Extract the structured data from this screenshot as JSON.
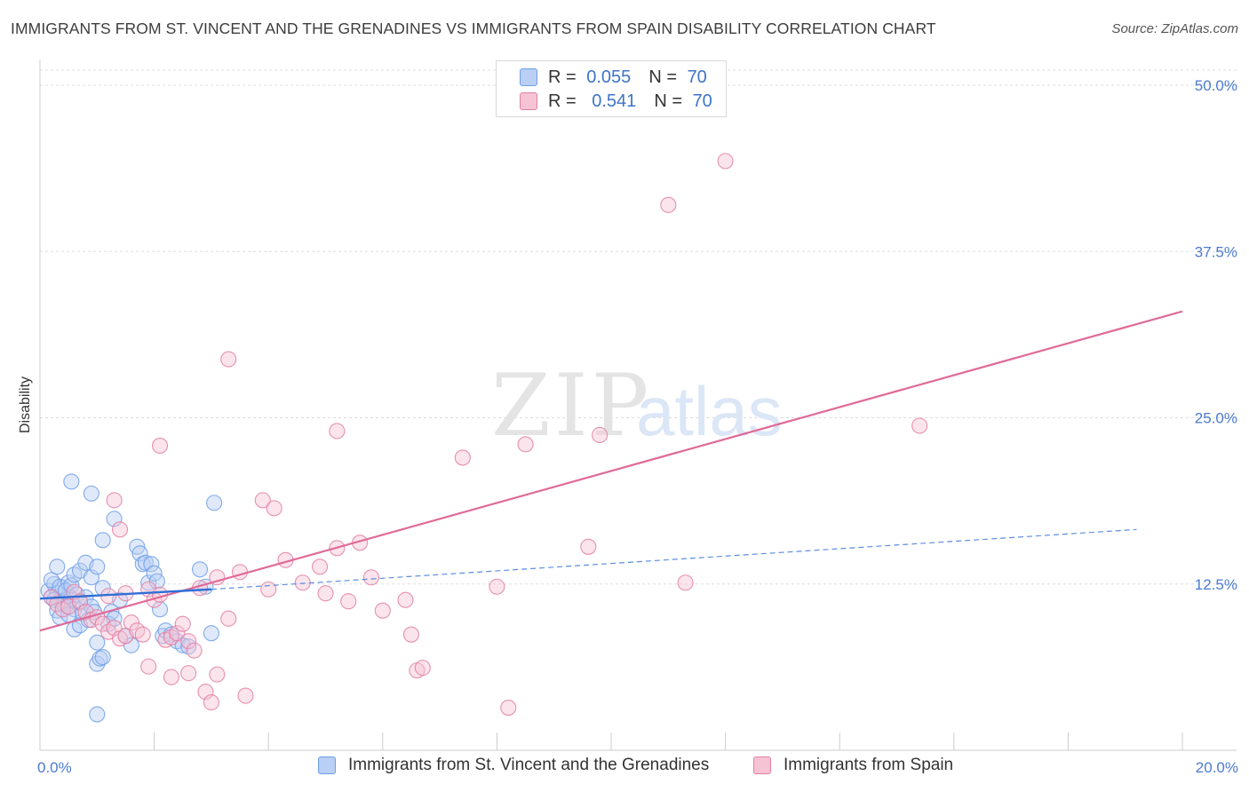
{
  "chart_data": {
    "type": "scatter",
    "title": "IMMIGRANTS FROM ST. VINCENT AND THE GRENADINES VS IMMIGRANTS FROM SPAIN DISABILITY CORRELATION CHART",
    "source": "Source: ZipAtlas.com",
    "ylabel": "Disability",
    "xlabel": "",
    "xlim": [
      0,
      20
    ],
    "ylim": [
      0,
      50
    ],
    "x_tick_labels": [
      "0.0%",
      "20.0%"
    ],
    "y_ticks": [
      12.5,
      25.0,
      37.5,
      50.0
    ],
    "y_tick_labels": [
      "12.5%",
      "25.0%",
      "37.5%",
      "50.0%"
    ],
    "watermark": {
      "zip": "ZIP",
      "atlas": "atlas"
    },
    "legend": {
      "r_label": "R =",
      "n_label": "N =",
      "entries": [
        {
          "r": "0.055",
          "n": "70"
        },
        {
          "r": "0.541",
          "n": "70"
        }
      ]
    },
    "series": [
      {
        "name": "Immigrants from St. Vincent and the Grenadines",
        "color": "#6f9ee6",
        "fill": "#b9cff3",
        "trend": {
          "solid_x": [
            0,
            3
          ],
          "solid_y": [
            11.4,
            12.1
          ],
          "dashed_x": [
            3,
            19.2
          ],
          "dashed_y": [
            12.1,
            16.6
          ]
        },
        "points": [
          [
            0.15,
            12.0
          ],
          [
            0.2,
            11.5
          ],
          [
            0.25,
            12.5
          ],
          [
            0.3,
            11.8
          ],
          [
            0.35,
            11.2
          ],
          [
            0.4,
            12.2
          ],
          [
            0.45,
            10.8
          ],
          [
            0.5,
            11.6
          ],
          [
            0.2,
            12.8
          ],
          [
            0.3,
            13.8
          ],
          [
            0.35,
            12.3
          ],
          [
            0.4,
            11.0
          ],
          [
            0.5,
            12.6
          ],
          [
            0.55,
            11.4
          ],
          [
            0.6,
            10.6
          ],
          [
            0.25,
            11.3
          ],
          [
            0.3,
            10.5
          ],
          [
            0.45,
            12.0
          ],
          [
            0.55,
            12.4
          ],
          [
            0.65,
            11.7
          ],
          [
            0.7,
            11.1
          ],
          [
            0.75,
            10.3
          ],
          [
            0.8,
            11.5
          ],
          [
            0.9,
            10.8
          ],
          [
            0.35,
            10.0
          ],
          [
            0.5,
            10.2
          ],
          [
            0.6,
            9.1
          ],
          [
            0.7,
            9.4
          ],
          [
            0.85,
            9.8
          ],
          [
            0.95,
            10.4
          ],
          [
            0.6,
            13.2
          ],
          [
            0.7,
            13.5
          ],
          [
            0.8,
            14.1
          ],
          [
            0.9,
            13.0
          ],
          [
            1.0,
            13.8
          ],
          [
            1.1,
            12.2
          ],
          [
            0.55,
            20.2
          ],
          [
            0.9,
            19.3
          ],
          [
            1.1,
            15.8
          ],
          [
            1.3,
            17.4
          ],
          [
            1.25,
            10.4
          ],
          [
            1.4,
            11.3
          ],
          [
            1.5,
            8.6
          ],
          [
            1.6,
            7.9
          ],
          [
            1.7,
            15.3
          ],
          [
            1.75,
            14.8
          ],
          [
            1.8,
            14.0
          ],
          [
            1.85,
            14.1
          ],
          [
            1.9,
            12.6
          ],
          [
            1.95,
            14.0
          ],
          [
            2.0,
            13.3
          ],
          [
            2.05,
            12.7
          ],
          [
            2.1,
            10.6
          ],
          [
            2.15,
            8.6
          ],
          [
            2.2,
            9.0
          ],
          [
            2.3,
            8.7
          ],
          [
            2.4,
            8.2
          ],
          [
            2.5,
            7.9
          ],
          [
            2.6,
            7.8
          ],
          [
            2.8,
            13.6
          ],
          [
            2.9,
            12.3
          ],
          [
            3.0,
            8.8
          ],
          [
            3.05,
            18.6
          ],
          [
            1.0,
            6.5
          ],
          [
            1.05,
            6.9
          ],
          [
            1.1,
            7.0
          ],
          [
            1.0,
            8.1
          ],
          [
            1.2,
            9.5
          ],
          [
            1.3,
            9.9
          ],
          [
            1.0,
            2.7
          ]
        ]
      },
      {
        "name": "Immigrants from Spain",
        "color": "#e27fa4",
        "fill": "#f6c3d5",
        "trend": {
          "solid_x": [
            0,
            20
          ],
          "solid_y": [
            9.0,
            33.0
          ]
        },
        "points": [
          [
            0.2,
            11.5
          ],
          [
            0.3,
            11.0
          ],
          [
            0.4,
            10.6
          ],
          [
            0.5,
            10.8
          ],
          [
            0.6,
            11.9
          ],
          [
            0.7,
            11.2
          ],
          [
            0.8,
            10.4
          ],
          [
            0.9,
            9.8
          ],
          [
            1.0,
            10.0
          ],
          [
            1.1,
            9.5
          ],
          [
            1.2,
            8.9
          ],
          [
            1.3,
            9.2
          ],
          [
            1.4,
            8.4
          ],
          [
            1.5,
            8.6
          ],
          [
            1.6,
            9.6
          ],
          [
            1.7,
            9.0
          ],
          [
            1.8,
            8.7
          ],
          [
            1.2,
            11.6
          ],
          [
            1.5,
            11.8
          ],
          [
            1.9,
            12.1
          ],
          [
            2.0,
            11.3
          ],
          [
            2.1,
            11.7
          ],
          [
            2.2,
            8.3
          ],
          [
            2.3,
            8.5
          ],
          [
            2.4,
            8.8
          ],
          [
            2.5,
            9.5
          ],
          [
            2.6,
            8.2
          ],
          [
            2.7,
            7.5
          ],
          [
            1.9,
            6.3
          ],
          [
            2.3,
            5.5
          ],
          [
            2.6,
            5.8
          ],
          [
            2.9,
            4.4
          ],
          [
            3.0,
            3.6
          ],
          [
            3.1,
            5.7
          ],
          [
            3.3,
            9.9
          ],
          [
            3.6,
            4.1
          ],
          [
            2.8,
            12.2
          ],
          [
            3.1,
            13.0
          ],
          [
            3.5,
            13.4
          ],
          [
            3.9,
            18.8
          ],
          [
            4.1,
            18.2
          ],
          [
            4.0,
            12.1
          ],
          [
            4.3,
            14.3
          ],
          [
            4.6,
            12.6
          ],
          [
            4.9,
            13.8
          ],
          [
            5.0,
            11.8
          ],
          [
            5.2,
            15.2
          ],
          [
            5.4,
            11.2
          ],
          [
            5.6,
            15.6
          ],
          [
            5.8,
            13.0
          ],
          [
            6.0,
            10.5
          ],
          [
            6.4,
            11.3
          ],
          [
            6.5,
            8.7
          ],
          [
            6.6,
            6.0
          ],
          [
            6.7,
            6.2
          ],
          [
            7.4,
            22.0
          ],
          [
            8.0,
            12.3
          ],
          [
            8.2,
            3.2
          ],
          [
            8.5,
            23.0
          ],
          [
            9.6,
            15.3
          ],
          [
            9.8,
            23.7
          ],
          [
            11.0,
            41.0
          ],
          [
            11.3,
            12.6
          ],
          [
            12.0,
            44.3
          ],
          [
            15.4,
            24.4
          ],
          [
            1.3,
            18.8
          ],
          [
            1.4,
            16.6
          ],
          [
            2.1,
            22.9
          ],
          [
            3.3,
            29.4
          ],
          [
            5.2,
            24.0
          ]
        ]
      }
    ]
  }
}
